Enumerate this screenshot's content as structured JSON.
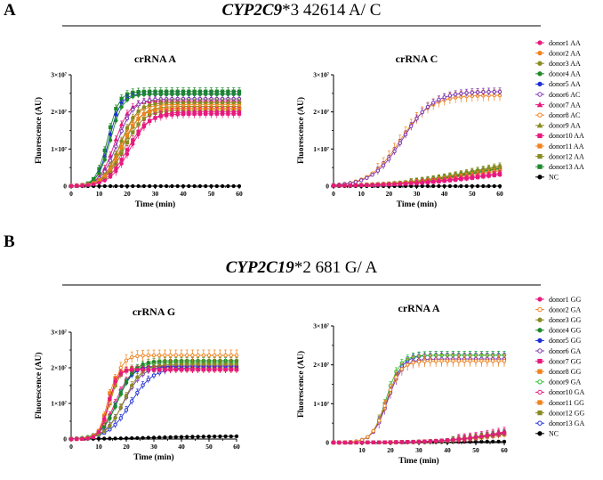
{
  "sections": [
    {
      "letter": "A",
      "title_gene": "CYP2C9",
      "title_rest": "*3 42614 A/ C",
      "legend": [
        {
          "label": "donor1 AA",
          "color": "#e8197f",
          "marker": "filled-circle"
        },
        {
          "label": "donor2 AA",
          "color": "#f0821e",
          "marker": "filled-circle"
        },
        {
          "label": "donor3 AA",
          "color": "#8a8b22",
          "marker": "filled-circle"
        },
        {
          "label": "donor4 AA",
          "color": "#1e8a2a",
          "marker": "filled-circle"
        },
        {
          "label": "donor5 AA",
          "color": "#1f2fd6",
          "marker": "filled-circle"
        },
        {
          "label": "donor6 AC",
          "color": "#7b35b0",
          "marker": "open-circle"
        },
        {
          "label": "donor7 AA",
          "color": "#e8197f",
          "marker": "filled-triangle"
        },
        {
          "label": "donor8 AC",
          "color": "#f0821e",
          "marker": "open-circle"
        },
        {
          "label": "donor9 AA",
          "color": "#8a8b22",
          "marker": "filled-triangle"
        },
        {
          "label": "donor10 AA",
          "color": "#e8197f",
          "marker": "filled-square"
        },
        {
          "label": "donor11 AA",
          "color": "#f0821e",
          "marker": "filled-square"
        },
        {
          "label": "donor12 AA",
          "color": "#8a8b22",
          "marker": "filled-square"
        },
        {
          "label": "donor13 AA",
          "color": "#1e8a2a",
          "marker": "filled-square"
        },
        {
          "label": "NC",
          "color": "#000000",
          "marker": "filled-circle"
        }
      ]
    },
    {
      "letter": "B",
      "title_gene": "CYP2C19",
      "title_rest": "*2 681 G/ A",
      "legend": [
        {
          "label": "donor1 GG",
          "color": "#e8197f",
          "marker": "filled-circle"
        },
        {
          "label": "donor2 GA",
          "color": "#f0821e",
          "marker": "open-circle"
        },
        {
          "label": "donor3 GG",
          "color": "#8a8b22",
          "marker": "filled-circle"
        },
        {
          "label": "donor4 GG",
          "color": "#1e8a2a",
          "marker": "filled-circle"
        },
        {
          "label": "donor5 GG",
          "color": "#1f2fd6",
          "marker": "filled-circle"
        },
        {
          "label": "donor6 GA",
          "color": "#7b35b0",
          "marker": "open-circle"
        },
        {
          "label": "donor7 GG",
          "color": "#e8197f",
          "marker": "filled-square"
        },
        {
          "label": "donor8 GG",
          "color": "#f0821e",
          "marker": "filled-square"
        },
        {
          "label": "donor9 GA",
          "color": "#2fc02f",
          "marker": "open-circle"
        },
        {
          "label": "donor10 GA",
          "color": "#e8197f",
          "marker": "open-circle"
        },
        {
          "label": "donor11 GG",
          "color": "#f0821e",
          "marker": "filled-square"
        },
        {
          "label": "donor12 GG",
          "color": "#8a8b22",
          "marker": "filled-square"
        },
        {
          "label": "donor13 GA",
          "color": "#1f2fd6",
          "marker": "open-circle"
        },
        {
          "label": "NC",
          "color": "#000000",
          "marker": "filled-circle"
        }
      ]
    }
  ],
  "chart_data": [
    {
      "type": "line",
      "section": "A",
      "title": "crRNA A",
      "xlabel": "Time (min)",
      "ylabel": "Fluorescence (AU)",
      "xlim": [
        0,
        60
      ],
      "ylim": [
        0,
        30000000
      ],
      "xticks": [
        "0",
        "10",
        "20",
        "30",
        "40",
        "50",
        "60"
      ],
      "yticks": [
        "0",
        "1×10⁷",
        "2×10⁷",
        "3×10⁷"
      ],
      "series": [
        {
          "name": "donor1 AA",
          "plateau": 20000000,
          "midpoint": 21,
          "width": 3.6,
          "error": 1200000
        },
        {
          "name": "donor2 AA",
          "plateau": 21000000,
          "midpoint": 18,
          "width": 3.2,
          "error": 1000000
        },
        {
          "name": "donor3 AA",
          "plateau": 22500000,
          "midpoint": 17.5,
          "width": 3.0,
          "error": 1000000
        },
        {
          "name": "donor4 AA",
          "plateau": 24800000,
          "midpoint": 14,
          "width": 2.2,
          "error": 800000
        },
        {
          "name": "donor5 AA",
          "plateau": 24800000,
          "midpoint": 13.5,
          "width": 2.0,
          "error": 700000
        },
        {
          "name": "donor6 AC",
          "plateau": 23500000,
          "midpoint": 16.5,
          "width": 2.8,
          "error": 900000
        },
        {
          "name": "donor7 AA",
          "plateau": 23000000,
          "midpoint": 15.5,
          "width": 2.6,
          "error": 900000
        },
        {
          "name": "donor8 AC",
          "plateau": 22000000,
          "midpoint": 17.5,
          "width": 3.0,
          "error": 900000
        },
        {
          "name": "donor9 AA",
          "plateau": 21500000,
          "midpoint": 18.5,
          "width": 3.2,
          "error": 1000000
        },
        {
          "name": "donor10 AA",
          "plateau": 19500000,
          "midpoint": 20,
          "width": 3.6,
          "error": 1200000
        },
        {
          "name": "donor11 AA",
          "plateau": 21000000,
          "midpoint": 18,
          "width": 3.2,
          "error": 1000000
        },
        {
          "name": "donor12 AA",
          "plateau": 20500000,
          "midpoint": 19,
          "width": 3.4,
          "error": 1000000
        },
        {
          "name": "donor13 AA",
          "plateau": 25500000,
          "midpoint": 13,
          "width": 2.0,
          "error": 1000000
        },
        {
          "name": "NC",
          "plateau": 0,
          "midpoint": 30,
          "width": 5,
          "error": 0
        }
      ]
    },
    {
      "type": "line",
      "section": "A",
      "title": "crRNA C",
      "xlabel": "Time (min)",
      "ylabel": "Fluorescence (AU)",
      "xlim": [
        0,
        60
      ],
      "ylim": [
        0,
        30000000
      ],
      "xticks": [
        "0",
        "10",
        "20",
        "30",
        "40",
        "50",
        "60"
      ],
      "yticks": [
        "0",
        "1×10⁷",
        "2×10⁷",
        "3×10⁷"
      ],
      "series": [
        {
          "name": "donor1 AA",
          "plateau": 6000000,
          "midpoint": 55,
          "width": 15,
          "error": 700000
        },
        {
          "name": "donor2 AA",
          "plateau": 6500000,
          "midpoint": 52,
          "width": 14,
          "error": 700000
        },
        {
          "name": "donor3 AA",
          "plateau": 7500000,
          "midpoint": 50,
          "width": 13,
          "error": 800000
        },
        {
          "name": "donor4 AA",
          "plateau": 7000000,
          "midpoint": 50,
          "width": 13,
          "error": 800000
        },
        {
          "name": "donor5 AA",
          "plateau": 6500000,
          "midpoint": 52,
          "width": 14,
          "error": 700000
        },
        {
          "name": "donor6 AC",
          "plateau": 25500000,
          "midpoint": 25,
          "width": 5.5,
          "error": 1000000
        },
        {
          "name": "donor7 AA",
          "plateau": 6000000,
          "midpoint": 55,
          "width": 15,
          "error": 700000
        },
        {
          "name": "donor8 AC",
          "plateau": 24500000,
          "midpoint": 24,
          "width": 5.5,
          "error": 1500000
        },
        {
          "name": "donor9 AA",
          "plateau": 8000000,
          "midpoint": 50,
          "width": 13,
          "error": 800000
        },
        {
          "name": "donor10 AA",
          "plateau": 5500000,
          "midpoint": 56,
          "width": 15,
          "error": 700000
        },
        {
          "name": "donor11 AA",
          "plateau": 6500000,
          "midpoint": 52,
          "width": 14,
          "error": 700000
        },
        {
          "name": "donor12 AA",
          "plateau": 7500000,
          "midpoint": 50,
          "width": 13,
          "error": 800000
        },
        {
          "name": "donor13 AA",
          "plateau": 7000000,
          "midpoint": 51,
          "width": 13,
          "error": 800000
        },
        {
          "name": "NC",
          "plateau": 0,
          "midpoint": 30,
          "width": 5,
          "error": 0
        }
      ]
    },
    {
      "type": "line",
      "section": "B",
      "title": "crRNA G",
      "xlabel": "Time (min)",
      "ylabel": "Fluorescence (AU)",
      "xlim": [
        0,
        60
      ],
      "ylim": [
        0,
        30000000
      ],
      "xticks": [
        "0",
        "10",
        "20",
        "30",
        "40",
        "50",
        "60"
      ],
      "yticks": [
        "0",
        "1×10⁷",
        "2×10⁷",
        "3×10⁷"
      ],
      "series": [
        {
          "name": "donor1 GG",
          "plateau": 19500000,
          "midpoint": 13.5,
          "width": 1.6,
          "error": 1000000
        },
        {
          "name": "donor2 GA",
          "plateau": 23500000,
          "midpoint": 14.5,
          "width": 2.0,
          "error": 1500000
        },
        {
          "name": "donor3 GG",
          "plateau": 21000000,
          "midpoint": 19,
          "width": 3.2,
          "error": 1000000
        },
        {
          "name": "donor4 GG",
          "plateau": 22000000,
          "midpoint": 17,
          "width": 3.0,
          "error": 900000
        },
        {
          "name": "donor5 GG",
          "plateau": 20500000,
          "midpoint": 16.5,
          "width": 2.8,
          "error": 900000
        },
        {
          "name": "donor6 GA",
          "plateau": 20500000,
          "midpoint": 19,
          "width": 3.4,
          "error": 900000
        },
        {
          "name": "donor7 GG",
          "plateau": 19500000,
          "midpoint": 13.5,
          "width": 1.6,
          "error": 1000000
        },
        {
          "name": "donor8 GG",
          "plateau": 19500000,
          "midpoint": 13,
          "width": 1.5,
          "error": 1000000
        },
        {
          "name": "donor9 GA",
          "plateau": 21500000,
          "midpoint": 17,
          "width": 3.0,
          "error": 900000
        },
        {
          "name": "donor10 GA",
          "plateau": 20500000,
          "midpoint": 16,
          "width": 2.8,
          "error": 900000
        },
        {
          "name": "donor11 GG",
          "plateau": 19500000,
          "midpoint": 13.5,
          "width": 1.6,
          "error": 1000000
        },
        {
          "name": "donor12 GG",
          "plateau": 20000000,
          "midpoint": 14,
          "width": 1.8,
          "error": 1000000
        },
        {
          "name": "donor13 GA",
          "plateau": 20000000,
          "midpoint": 21.5,
          "width": 4.0,
          "error": 1000000
        },
        {
          "name": "NC",
          "plateau": 800000,
          "midpoint": 30,
          "width": 10,
          "error": 100000
        }
      ]
    },
    {
      "type": "line",
      "section": "B",
      "title": "crRNA A",
      "xlabel": "Time (min)",
      "ylabel": "Fluorescence (AU)",
      "xlim": [
        0,
        60
      ],
      "ylim": [
        0,
        30000000
      ],
      "xticks": [
        "10",
        "20",
        "30",
        "40",
        "50",
        "60"
      ],
      "yticks": [
        "0",
        "1×10⁷",
        "2×10⁷",
        "3×10⁷"
      ],
      "series": [
        {
          "name": "donor1 GG",
          "plateau": 5000000,
          "midpoint": 60,
          "width": 10,
          "error": 1000000
        },
        {
          "name": "donor2 GA",
          "plateau": 21000000,
          "midpoint": 18.5,
          "width": 2.5,
          "error": 1500000
        },
        {
          "name": "donor3 GG",
          "plateau": 4000000,
          "midpoint": 58,
          "width": 10,
          "error": 800000
        },
        {
          "name": "donor4 GG",
          "plateau": 4500000,
          "midpoint": 58,
          "width": 10,
          "error": 800000
        },
        {
          "name": "donor5 GG",
          "plateau": 4500000,
          "midpoint": 59,
          "width": 10,
          "error": 800000
        },
        {
          "name": "donor6 GA",
          "plateau": 21500000,
          "midpoint": 19,
          "width": 2.6,
          "error": 1500000
        },
        {
          "name": "donor7 GG",
          "plateau": 4500000,
          "midpoint": 59,
          "width": 10,
          "error": 800000
        },
        {
          "name": "donor8 GG",
          "plateau": 4000000,
          "midpoint": 59,
          "width": 10,
          "error": 800000
        },
        {
          "name": "donor9 GA",
          "plateau": 22500000,
          "midpoint": 18.5,
          "width": 2.4,
          "error": 1000000
        },
        {
          "name": "donor10 GA",
          "plateau": 5500000,
          "midpoint": 60,
          "width": 10,
          "error": 1200000
        },
        {
          "name": "donor11 GG",
          "plateau": 4500000,
          "midpoint": 58,
          "width": 10,
          "error": 800000
        },
        {
          "name": "donor12 GG",
          "plateau": 4000000,
          "midpoint": 59,
          "width": 10,
          "error": 800000
        },
        {
          "name": "donor13 GA",
          "plateau": 22500000,
          "midpoint": 19,
          "width": 2.6,
          "error": 1000000
        },
        {
          "name": "NC",
          "plateau": 300000,
          "midpoint": 40,
          "width": 10,
          "error": 50000
        }
      ]
    }
  ]
}
